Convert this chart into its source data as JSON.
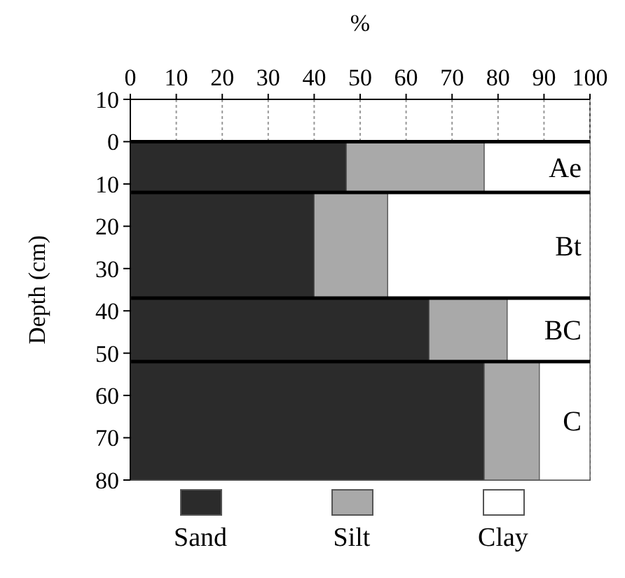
{
  "chart_data": {
    "type": "bar",
    "orientation": "horizontal",
    "stacked": true,
    "xlabel": "%",
    "ylabel": "Depth (cm)",
    "x": [
      6,
      24.5,
      44.5,
      66
    ],
    "annotations": [
      "Ae",
      "Bt",
      "BC",
      "C"
    ],
    "series": [
      {
        "name": "Sand",
        "color": "#2b2b2b",
        "values": [
          47,
          40,
          65,
          77
        ]
      },
      {
        "name": "Silt",
        "color": "#a9a9a9",
        "values": [
          30,
          16,
          17,
          12
        ]
      },
      {
        "name": "Clay",
        "color": "#ffffff",
        "values": [
          23,
          44,
          18,
          11
        ]
      }
    ],
    "xlim": [
      0,
      100
    ],
    "xticks": [
      0,
      10,
      20,
      30,
      40,
      50,
      60,
      70,
      80,
      90,
      100
    ],
    "ylim": [
      80,
      -10
    ],
    "yticks": [
      {
        "value": -10,
        "label": "10"
      },
      0,
      10,
      20,
      30,
      40,
      50,
      60,
      70,
      80
    ],
    "ref_lines": [
      {
        "axis": "y",
        "value": 0,
        "color": "#000000"
      },
      {
        "axis": "y",
        "value": 12,
        "color": "#000000"
      },
      {
        "axis": "y",
        "value": 37,
        "color": "#000000"
      },
      {
        "axis": "y",
        "value": 52,
        "color": "#000000"
      }
    ],
    "grid": "x",
    "legend": "bottom"
  }
}
